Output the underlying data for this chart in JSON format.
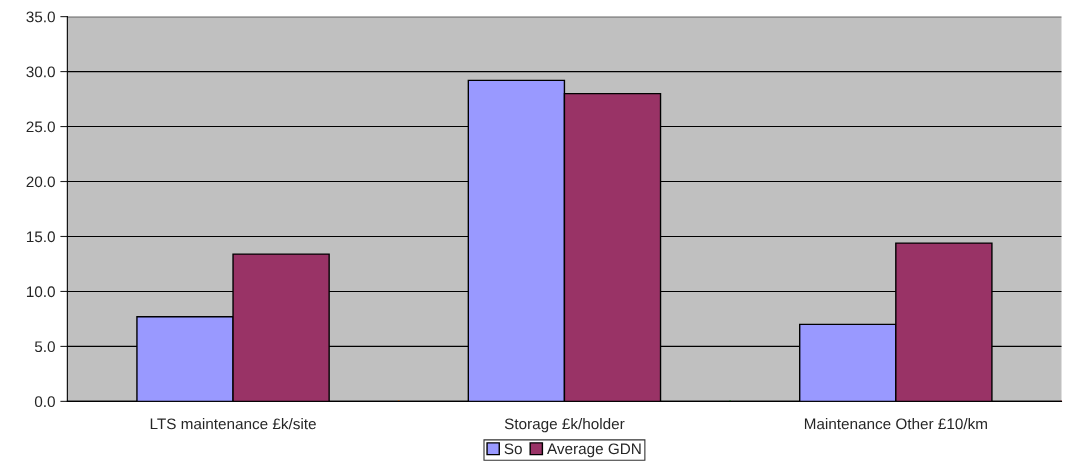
{
  "chart_data": {
    "type": "bar",
    "categories": [
      "LTS maintenance £k/site",
      "Storage £k/holder",
      "Maintenance Other £10/km"
    ],
    "series": [
      {
        "name": "So",
        "color": "#9999ff",
        "values": [
          7.7,
          29.2,
          7.0
        ]
      },
      {
        "name": "Average GDN",
        "color": "#993366",
        "values": [
          13.4,
          28.0,
          14.4
        ]
      }
    ],
    "ylim": [
      0,
      35
    ],
    "yticks": [
      {
        "value": 0,
        "label": "0.0"
      },
      {
        "value": 5,
        "label": "5.0"
      },
      {
        "value": 10,
        "label": "10.0"
      },
      {
        "value": 15,
        "label": "15.0"
      },
      {
        "value": 20,
        "label": "20.0"
      },
      {
        "value": 25,
        "label": "25.0"
      },
      {
        "value": 30,
        "label": "30.0"
      },
      {
        "value": 35,
        "label": "35.0"
      }
    ],
    "grid": "y",
    "legend": "bottom"
  }
}
